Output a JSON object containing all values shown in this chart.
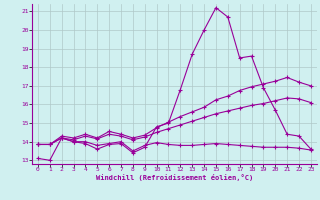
{
  "xlabel": "Windchill (Refroidissement éolien,°C)",
  "bg_color": "#d0f0f0",
  "line_color": "#990099",
  "xlim": [
    -0.5,
    23.5
  ],
  "ylim": [
    12.8,
    21.4
  ],
  "xticks": [
    0,
    1,
    2,
    3,
    4,
    5,
    6,
    7,
    8,
    9,
    10,
    11,
    12,
    13,
    14,
    15,
    16,
    17,
    18,
    19,
    20,
    21,
    22,
    23
  ],
  "yticks": [
    13,
    14,
    15,
    16,
    17,
    18,
    19,
    20,
    21
  ],
  "grid_color": "#b0c8c8",
  "line1_x": [
    0,
    1,
    2,
    3,
    4,
    5,
    6,
    7,
    8,
    9,
    10,
    11,
    12,
    13,
    14,
    15,
    16,
    17,
    18,
    19,
    20,
    21,
    22,
    23
  ],
  "line1_y": [
    13.1,
    13.0,
    14.2,
    14.0,
    13.9,
    13.6,
    13.85,
    13.9,
    13.4,
    13.7,
    14.8,
    15.0,
    16.8,
    18.7,
    20.0,
    21.2,
    20.7,
    18.5,
    18.6,
    16.9,
    15.7,
    14.4,
    14.3,
    13.6
  ],
  "line2_x": [
    0,
    1,
    2,
    3,
    4,
    5,
    6,
    7,
    8,
    9,
    10,
    11,
    12,
    13,
    14,
    15,
    16,
    17,
    18,
    19,
    20,
    21,
    22,
    23
  ],
  "line2_y": [
    13.85,
    13.85,
    14.2,
    14.1,
    14.3,
    14.15,
    14.4,
    14.3,
    14.1,
    14.25,
    14.5,
    14.7,
    14.9,
    15.1,
    15.3,
    15.5,
    15.65,
    15.8,
    15.95,
    16.05,
    16.2,
    16.35,
    16.3,
    16.1
  ],
  "line3_x": [
    0,
    1,
    2,
    3,
    4,
    5,
    6,
    7,
    8,
    9,
    10,
    11,
    12,
    13,
    14,
    15,
    16,
    17,
    18,
    19,
    20,
    21,
    22,
    23
  ],
  "line3_y": [
    13.85,
    13.85,
    14.3,
    14.2,
    14.4,
    14.2,
    14.55,
    14.4,
    14.2,
    14.35,
    14.75,
    15.05,
    15.35,
    15.6,
    15.85,
    16.25,
    16.45,
    16.75,
    16.95,
    17.1,
    17.25,
    17.45,
    17.2,
    17.0
  ],
  "line4_x": [
    0,
    1,
    2,
    3,
    4,
    5,
    6,
    7,
    8,
    9,
    10,
    11,
    12,
    13,
    14,
    15,
    16,
    17,
    18,
    19,
    20,
    21,
    22,
    23
  ],
  "line4_y": [
    13.85,
    13.85,
    14.2,
    14.0,
    14.0,
    13.8,
    13.9,
    14.0,
    13.5,
    13.8,
    13.95,
    13.85,
    13.8,
    13.8,
    13.85,
    13.9,
    13.85,
    13.8,
    13.75,
    13.7,
    13.7,
    13.7,
    13.65,
    13.55
  ]
}
